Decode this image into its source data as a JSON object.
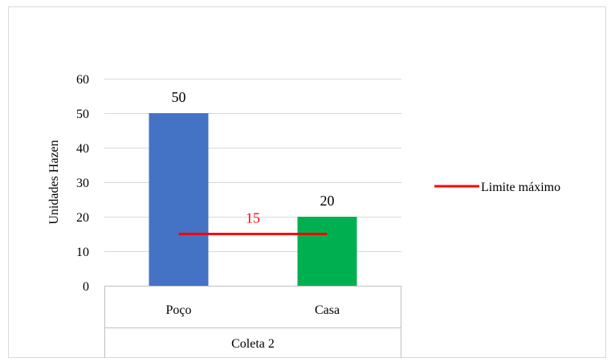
{
  "chart_data": {
    "type": "bar",
    "title": "",
    "xlabel": "",
    "ylabel": "Unidades Hazen",
    "ylim": [
      0,
      60
    ],
    "yticks": [
      0,
      10,
      20,
      30,
      40,
      50,
      60
    ],
    "group_label": "Coleta 2",
    "categories": [
      "Poço",
      "Casa"
    ],
    "values": [
      50,
      20
    ],
    "value_labels": [
      "50",
      "20"
    ],
    "bar_colors": [
      "#4472C4",
      "#00B050"
    ],
    "grid": true,
    "limit_line": {
      "name": "Limite máximo",
      "value": 15,
      "value_label": "15",
      "color": "#FF0000"
    },
    "legend": {
      "position": "right"
    }
  }
}
